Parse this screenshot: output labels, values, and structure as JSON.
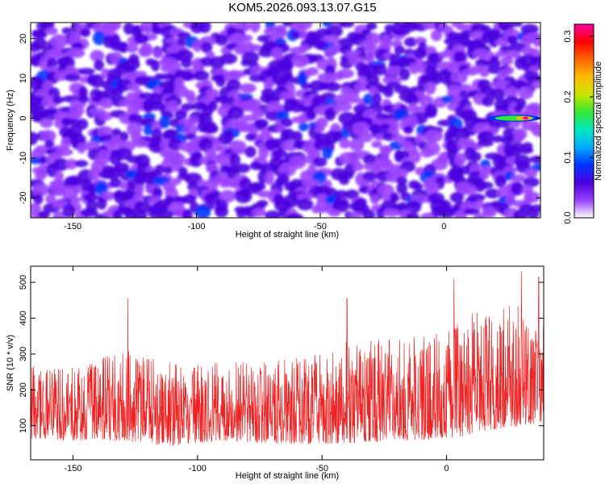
{
  "title": "KOM5.2026.093.13.07.G15",
  "chart_data": [
    {
      "type": "heatmap",
      "xlabel": "Height of straight line (km)",
      "ylabel": "Frequency (Hz)",
      "xlim": [
        -167,
        39
      ],
      "ylim": [
        -25,
        24
      ],
      "xticks": [
        -150,
        -100,
        -50,
        0
      ],
      "xtick_labels": [
        "-150",
        "-100",
        "-50",
        "0"
      ],
      "yticks": [
        -20,
        -10,
        0,
        10,
        20
      ],
      "ytick_labels": [
        "-20",
        "-10",
        "0",
        "10",
        "20"
      ],
      "colorbar": {
        "label": "Normalized spectral amplitude",
        "range": [
          0.0,
          0.32
        ],
        "ticks": [
          0.0,
          0.1,
          0.2,
          0.3
        ],
        "tick_labels": [
          "0.0",
          "0.1",
          "0.2",
          "0.3"
        ],
        "colormap": [
          "#ffffff",
          "#9a40ff",
          "#4b00e0",
          "#0033ff",
          "#00aaff",
          "#00e8c0",
          "#33e633",
          "#c8e600",
          "#ffbb00",
          "#ff6600",
          "#ff0000",
          "#ff00a0"
        ]
      },
      "features": [
        {
          "label": "signal streak",
          "x_start": 18,
          "x_end": 39,
          "y": 0,
          "peak_x": 33,
          "peak_value": 0.32
        }
      ]
    },
    {
      "type": "line",
      "xlabel": "Height of straight line (km)",
      "ylabel": "SNR (10 * v/v)",
      "xlim": [
        -167,
        39
      ],
      "ylim": [
        5,
        545
      ],
      "xticks": [
        -150,
        -100,
        -50,
        0
      ],
      "xtick_labels": [
        "-150",
        "-100",
        "-50",
        "0"
      ],
      "yticks": [
        100,
        200,
        300,
        400,
        500
      ],
      "ytick_labels": [
        "100",
        "200",
        "300",
        "400",
        "500"
      ],
      "color": "#ee2222",
      "envelope": {
        "x": [
          -167,
          -150,
          -130,
          -110,
          -90,
          -70,
          -50,
          -40,
          -20,
          0,
          10,
          20,
          30,
          39
        ],
        "baseline": [
          130,
          125,
          140,
          120,
          130,
          125,
          130,
          145,
          150,
          160,
          185,
          200,
          210,
          200
        ],
        "spread": [
          120,
          120,
          150,
          140,
          130,
          135,
          150,
          170,
          165,
          175,
          200,
          200,
          200,
          170
        ]
      },
      "peaks": [
        {
          "x": -128,
          "y": 455
        },
        {
          "x": -40,
          "y": 455
        },
        {
          "x": 3,
          "y": 510
        },
        {
          "x": 30,
          "y": 530
        },
        {
          "x": 37,
          "y": 515
        }
      ]
    }
  ]
}
